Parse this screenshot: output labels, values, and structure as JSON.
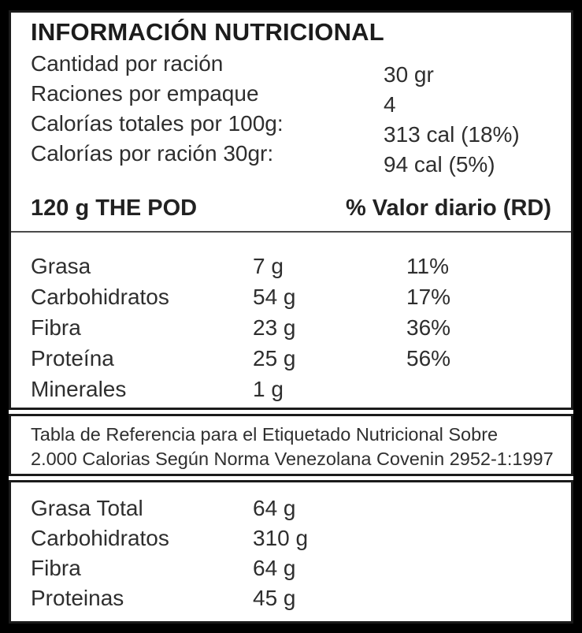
{
  "label": {
    "title": "INFORMACIÓN NUTRICIONAL",
    "serving_info": {
      "rows": [
        {
          "label": "Cantidad por ración",
          "value": "30 gr"
        },
        {
          "label": "Raciones por empaque",
          "value": "4"
        },
        {
          "label": "Calorías totales por 100g:",
          "value": "313 cal (18%)"
        },
        {
          "label": "Calorías por ración 30gr:",
          "value": "94 cal (5%)"
        }
      ]
    },
    "main_table": {
      "col1_header": "120 g THE POD",
      "col2_header": "% Valor diario (RD)",
      "rows": [
        {
          "name": "Grasa",
          "amount": "7 g",
          "dv": "11%"
        },
        {
          "name": "Carbohidratos",
          "amount": "54 g",
          "dv": "17%"
        },
        {
          "name": "Fibra",
          "amount": "23 g",
          "dv": "36%"
        },
        {
          "name": "Proteína",
          "amount": "25 g",
          "dv": "56%"
        },
        {
          "name": "Minerales",
          "amount": "1 g",
          "dv": ""
        }
      ]
    },
    "reference_note": {
      "line1": "Tabla de Referencia para el Etiquetado Nutricional Sobre",
      "line2": "2.000 Calorias Según Norma Venezolana Covenin 2952-1:1997"
    },
    "reference_table": {
      "rows": [
        {
          "name": "Grasa Total",
          "amount": "64 g"
        },
        {
          "name": "Carbohidratos",
          "amount": "310 g"
        },
        {
          "name": "Fibra",
          "amount": "64 g"
        },
        {
          "name": "Proteinas",
          "amount": "45 g"
        }
      ]
    },
    "colors": {
      "background": "#000000",
      "panel": "#ffffff",
      "border": "#1b1b1b",
      "text": "#2e2e2e",
      "divider": "#4a4a4a"
    }
  }
}
